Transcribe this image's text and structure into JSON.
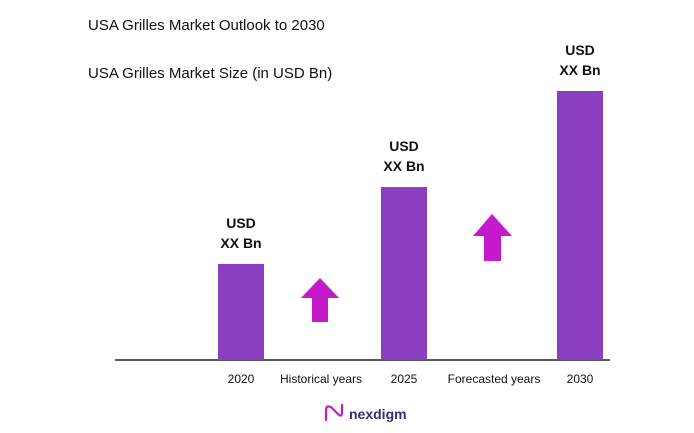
{
  "chart_data": {
    "type": "bar",
    "title": "USA Grilles Market Outlook to 2030",
    "subtitle": "USA Grilles Market Size (in USD Bn)",
    "categories": [
      "2020",
      "2025",
      "2030"
    ],
    "values": [
      2.0,
      3.6,
      5.6
    ],
    "data_labels": [
      [
        "USD",
        "XX Bn"
      ],
      [
        "USD",
        "XX Bn"
      ],
      [
        "USD",
        "XX Bn"
      ]
    ],
    "period_labels": [
      "Historical years",
      "Forecasted years"
    ],
    "ylim": [
      0,
      5.6
    ],
    "grid": false,
    "bar_color": "#8a3fc1",
    "arrow_color": "#c41acb"
  },
  "brand": {
    "name": "nexdigm",
    "color": "#c41acb"
  }
}
